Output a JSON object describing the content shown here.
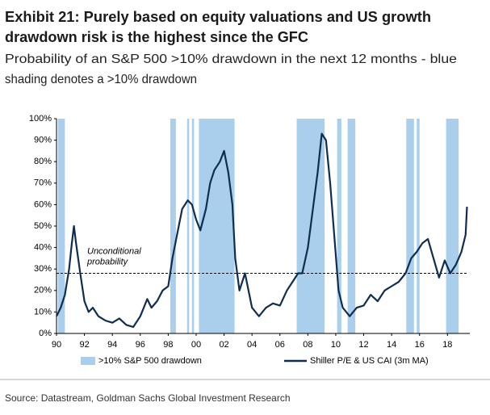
{
  "chart_data": {
    "type": "line",
    "title": [
      "Exhibit 21: Purely based on equity valuations and US growth",
      "drawdown risk is the highest since the GFC"
    ],
    "subtitle": [
      "Probability of an S&P 500 >10% drawdown in the next 12 months - blue",
      "shading denotes a >10% drawdown"
    ],
    "source": "Source: Datastream, Goldman Sachs Global Investment Research",
    "xlim": [
      1990,
      2019.6
    ],
    "xticks": [
      {
        "value": 1990,
        "label": "90"
      },
      {
        "value": 1992,
        "label": "92"
      },
      {
        "value": 1994,
        "label": "94"
      },
      {
        "value": 1996,
        "label": "96"
      },
      {
        "value": 1998,
        "label": "98"
      },
      {
        "value": 2000,
        "label": "00"
      },
      {
        "value": 2002,
        "label": "02"
      },
      {
        "value": 2004,
        "label": "04"
      },
      {
        "value": 2006,
        "label": "06"
      },
      {
        "value": 2008,
        "label": "08"
      },
      {
        "value": 2010,
        "label": "10"
      },
      {
        "value": 2012,
        "label": "12"
      },
      {
        "value": 2014,
        "label": "14"
      },
      {
        "value": 2016,
        "label": "16"
      },
      {
        "value": 2018,
        "label": "18"
      }
    ],
    "ylim": [
      0,
      100
    ],
    "yticks": [
      {
        "value": 0,
        "label": "0%"
      },
      {
        "value": 10,
        "label": "10%"
      },
      {
        "value": 20,
        "label": "20%"
      },
      {
        "value": 30,
        "label": "30%"
      },
      {
        "value": 40,
        "label": "40%"
      },
      {
        "value": 50,
        "label": "50%"
      },
      {
        "value": 60,
        "label": "60%"
      },
      {
        "value": 70,
        "label": "70%"
      },
      {
        "value": 80,
        "label": "80%"
      },
      {
        "value": 90,
        "label": "90%"
      },
      {
        "value": 100,
        "label": "100%"
      }
    ],
    "reference_line": {
      "value": 28,
      "label": [
        "Unconditional",
        "probability"
      ]
    },
    "series": [
      {
        "name": ">10% S&P 500 drawdown",
        "color": "#a9cfec",
        "periods": [
          [
            1990.1,
            1990.6
          ],
          [
            1998.15,
            1998.55
          ],
          [
            1999.35,
            1999.5
          ],
          [
            1999.7,
            1999.85
          ],
          [
            2000.2,
            2002.75
          ],
          [
            2007.2,
            2009.2
          ],
          [
            2010.1,
            2010.4
          ],
          [
            2010.85,
            2011.4
          ],
          [
            2015.05,
            2015.6
          ],
          [
            2015.8,
            2016.0
          ],
          [
            2017.9,
            2018.8
          ]
        ]
      },
      {
        "name": "Shiller P/E & US CAI (3m MA)",
        "color": "#0f2d52",
        "x": [
          1990.0,
          1990.3,
          1990.6,
          1990.9,
          1991.1,
          1991.25,
          1991.4,
          1991.7,
          1992.0,
          1992.3,
          1992.6,
          1993.0,
          1993.5,
          1994.0,
          1994.5,
          1995.0,
          1995.5,
          1996.0,
          1996.5,
          1996.8,
          1997.2,
          1997.6,
          1998.0,
          1998.3,
          1998.6,
          1999.0,
          1999.4,
          1999.7,
          2000.0,
          2000.3,
          2000.7,
          2001.0,
          2001.3,
          2001.7,
          2002.0,
          2002.3,
          2002.6,
          2002.8,
          2003.1,
          2003.5,
          2004.0,
          2004.5,
          2005.0,
          2005.5,
          2006.0,
          2006.5,
          2007.0,
          2007.3,
          2007.6,
          2008.0,
          2008.4,
          2008.7,
          2009.0,
          2009.3,
          2009.6,
          2009.9,
          2010.2,
          2010.5,
          2011.0,
          2011.5,
          2012.0,
          2012.5,
          2013.0,
          2013.5,
          2014.0,
          2014.5,
          2015.0,
          2015.4,
          2015.8,
          2016.2,
          2016.6,
          2017.0,
          2017.4,
          2017.8,
          2018.2,
          2018.6,
          2019.0,
          2019.3,
          2019.4
        ],
        "values": [
          8,
          12,
          18,
          30,
          42,
          50,
          42,
          28,
          15,
          10,
          12,
          8,
          6,
          5,
          7,
          4,
          3,
          8,
          16,
          12,
          15,
          20,
          22,
          35,
          45,
          58,
          62,
          60,
          53,
          48,
          58,
          70,
          76,
          80,
          85,
          75,
          60,
          35,
          20,
          28,
          12,
          8,
          12,
          14,
          13,
          20,
          25,
          28,
          28,
          40,
          60,
          75,
          93,
          90,
          70,
          45,
          20,
          12,
          8,
          12,
          13,
          18,
          15,
          20,
          22,
          24,
          28,
          35,
          38,
          42,
          44,
          35,
          26,
          34,
          28,
          32,
          38,
          46,
          59
        ]
      }
    ]
  }
}
